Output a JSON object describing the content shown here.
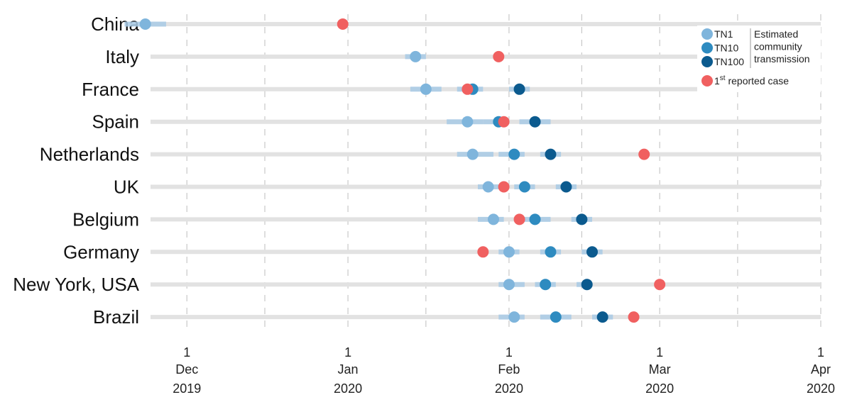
{
  "chart_data": {
    "type": "scatter",
    "title": "",
    "xlabel": "",
    "ylabel": "",
    "x_axis": {
      "type": "date",
      "range": [
        "2019-11-24",
        "2020-04-01"
      ],
      "ticks": [
        {
          "date": "2019-12-01",
          "day": "1",
          "month": "Dec",
          "year": "2019"
        },
        {
          "date": "2020-01-01",
          "day": "1",
          "month": "Jan",
          "year": "2020"
        },
        {
          "date": "2020-02-01",
          "day": "1",
          "month": "Feb",
          "year": "2020"
        },
        {
          "date": "2020-03-01",
          "day": "1",
          "month": "Mar",
          "year": "2020"
        },
        {
          "date": "2020-04-01",
          "day": "1",
          "month": "Apr",
          "year": "2020"
        }
      ],
      "gridlines": [
        "2019-12-01",
        "2019-12-16",
        "2020-01-01",
        "2020-01-16",
        "2020-02-01",
        "2020-02-15",
        "2020-03-01",
        "2020-03-16",
        "2020-04-01"
      ],
      "grid": "dashed vertical"
    },
    "categories": [
      "China",
      "Italy",
      "France",
      "Spain",
      "Netherlands",
      "UK",
      "Belgium",
      "Germany",
      "New York, USA",
      "Brazil"
    ],
    "series": [
      {
        "name": "TN1",
        "color": "#7fb5dc",
        "points": [
          {
            "category": "China",
            "date": "2019-11-23",
            "lo": "2019-11-19",
            "hi": "2019-11-27"
          },
          {
            "category": "Italy",
            "date": "2020-01-14",
            "lo": "2020-01-12",
            "hi": "2020-01-16"
          },
          {
            "category": "France",
            "date": "2020-01-16",
            "lo": "2020-01-13",
            "hi": "2020-01-19"
          },
          {
            "category": "Spain",
            "date": "2020-01-24",
            "lo": "2020-01-20",
            "hi": "2020-01-27"
          },
          {
            "category": "Netherlands",
            "date": "2020-01-25",
            "lo": "2020-01-22",
            "hi": "2020-01-29"
          },
          {
            "category": "UK",
            "date": "2020-01-28",
            "lo": "2020-01-26",
            "hi": "2020-01-30"
          },
          {
            "category": "Belgium",
            "date": "2020-01-29",
            "lo": "2020-01-26",
            "hi": "2020-01-31"
          },
          {
            "category": "Germany",
            "date": "2020-02-01",
            "lo": "2020-01-30",
            "hi": "2020-02-03"
          },
          {
            "category": "New York, USA",
            "date": "2020-02-01",
            "lo": "2020-01-30",
            "hi": "2020-02-04"
          },
          {
            "category": "Brazil",
            "date": "2020-02-02",
            "lo": "2020-01-30",
            "hi": "2020-02-04"
          }
        ]
      },
      {
        "name": "TN10",
        "color": "#2e8bc0",
        "points": [
          {
            "category": "France",
            "date": "2020-01-25",
            "lo": "2020-01-22",
            "hi": "2020-01-27"
          },
          {
            "category": "Spain",
            "date": "2020-01-30",
            "lo": "2020-01-27",
            "hi": "2020-02-01"
          },
          {
            "category": "Netherlands",
            "date": "2020-02-02",
            "lo": "2020-01-30",
            "hi": "2020-02-04"
          },
          {
            "category": "UK",
            "date": "2020-02-04",
            "lo": "2020-02-02",
            "hi": "2020-02-06"
          },
          {
            "category": "Belgium",
            "date": "2020-02-06",
            "lo": "2020-02-03",
            "hi": "2020-02-09"
          },
          {
            "category": "Germany",
            "date": "2020-02-09",
            "lo": "2020-02-07",
            "hi": "2020-02-11"
          },
          {
            "category": "New York, USA",
            "date": "2020-02-08",
            "lo": "2020-02-06",
            "hi": "2020-02-10"
          },
          {
            "category": "Brazil",
            "date": "2020-02-10",
            "lo": "2020-02-07",
            "hi": "2020-02-13"
          }
        ]
      },
      {
        "name": "TN100",
        "color": "#0b5a8e",
        "points": [
          {
            "category": "France",
            "date": "2020-02-03",
            "lo": "2020-02-01",
            "hi": "2020-02-05"
          },
          {
            "category": "Spain",
            "date": "2020-02-06",
            "lo": "2020-02-03",
            "hi": "2020-02-09"
          },
          {
            "category": "Netherlands",
            "date": "2020-02-09",
            "lo": "2020-02-07",
            "hi": "2020-02-11"
          },
          {
            "category": "UK",
            "date": "2020-02-12",
            "lo": "2020-02-10",
            "hi": "2020-02-14"
          },
          {
            "category": "Belgium",
            "date": "2020-02-15",
            "lo": "2020-02-13",
            "hi": "2020-02-17"
          },
          {
            "category": "Germany",
            "date": "2020-02-17",
            "lo": "2020-02-15",
            "hi": "2020-02-19"
          },
          {
            "category": "New York, USA",
            "date": "2020-02-16",
            "lo": "2020-02-14",
            "hi": "2020-02-17"
          },
          {
            "category": "Brazil",
            "date": "2020-02-19",
            "lo": "2020-02-17",
            "hi": "2020-02-21"
          }
        ]
      },
      {
        "name": "1st reported case",
        "color": "#f06060",
        "points": [
          {
            "category": "China",
            "date": "2019-12-31"
          },
          {
            "category": "Italy",
            "date": "2020-01-30"
          },
          {
            "category": "France",
            "date": "2020-01-24"
          },
          {
            "category": "Spain",
            "date": "2020-01-31"
          },
          {
            "category": "Netherlands",
            "date": "2020-02-27"
          },
          {
            "category": "UK",
            "date": "2020-01-31"
          },
          {
            "category": "Belgium",
            "date": "2020-02-03"
          },
          {
            "category": "Germany",
            "date": "2020-01-27"
          },
          {
            "category": "New York, USA",
            "date": "2020-03-01"
          },
          {
            "category": "Brazil",
            "date": "2020-02-25"
          }
        ]
      }
    ],
    "legend": {
      "position": "top-right",
      "items": [
        {
          "label": "TN1",
          "color": "#7fb5dc"
        },
        {
          "label": "TN10",
          "color": "#2e8bc0"
        },
        {
          "label": "TN100",
          "color": "#0b5a8e"
        }
      ],
      "group_note": [
        "Estimated",
        "community",
        "transmission"
      ],
      "reported": {
        "prefix": "1",
        "sup": "st",
        "suffix": " reported case",
        "color": "#f06060"
      }
    },
    "colors": {
      "track": "#e2e2e2",
      "grid": "#c8c8c8",
      "interval": "#a9cbe6"
    }
  }
}
